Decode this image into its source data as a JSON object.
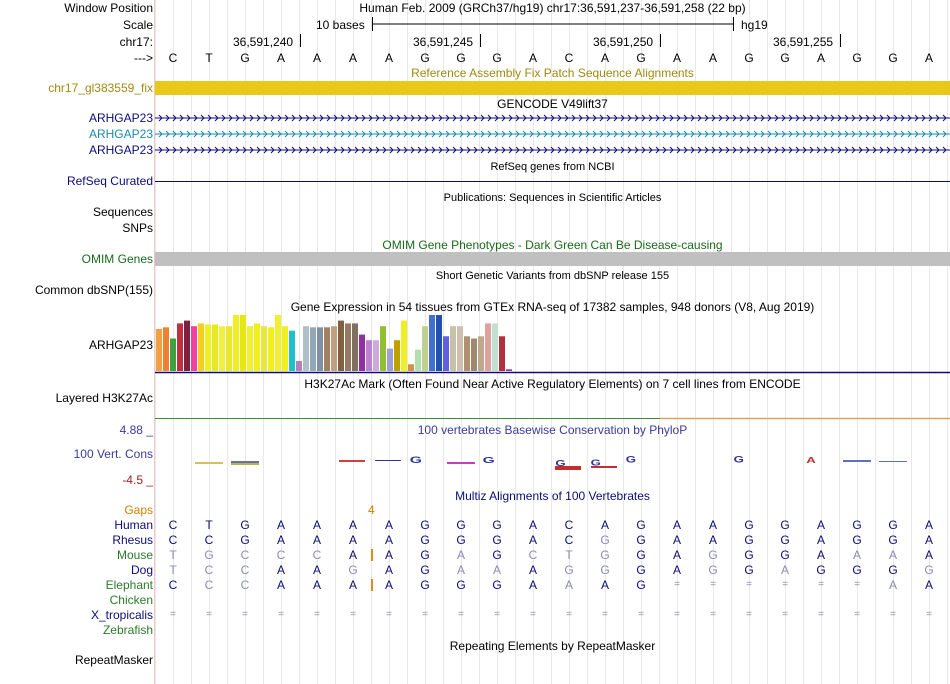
{
  "header": {
    "window_position_label": "Window Position",
    "scale_label": "Scale",
    "chrom_label": "chr17:",
    "arrow_label": "--->",
    "assembly_title": "Human Feb. 2009 (GRCh37/hg19)   chr17:36,591,237-36,591,258 (22 bp)",
    "scale_text": "10 bases",
    "scale_db": "hg19",
    "ticks": [
      "36,591,240",
      "36,591,245",
      "36,591,250",
      "36,591,255"
    ]
  },
  "sequence": [
    "C",
    "T",
    "G",
    "A",
    "A",
    "A",
    "A",
    "G",
    "G",
    "G",
    "A",
    "C",
    "A",
    "G",
    "A",
    "A",
    "G",
    "G",
    "A",
    "G",
    "G",
    "A"
  ],
  "tracks": {
    "fix_patch": {
      "title": "Reference Assembly Fix Patch Sequence Alignments",
      "label": "chr17_gl383559_fix",
      "color": "#e8c818",
      "label_color": "#a08a10"
    },
    "gencode": {
      "title": "GENCODE V49lift37",
      "labels": [
        "ARHGAP23",
        "ARHGAP23",
        "ARHGAP23"
      ],
      "colors": [
        "#0c0c78",
        "#1a8ab0",
        "#0c0c78"
      ]
    },
    "refseq": {
      "title": "RefSeq genes from NCBI",
      "label": "RefSeq Curated"
    },
    "publications": {
      "title": "Publications: Sequences in Scientific Articles",
      "labels": [
        "Sequences",
        "SNPs"
      ]
    },
    "omim": {
      "title": "OMIM Gene Phenotypes - Dark Green Can Be Disease-causing",
      "label": "OMIM Genes",
      "color": "#c0c0c0"
    },
    "dbsnp": {
      "title": "Short Genetic Variants from dbSNP release 155",
      "label": "Common dbSNP(155)"
    },
    "gtex": {
      "title": "Gene Expression in 54 tissues from GTEx RNA-seq of 17382 samples, 948 donors (V8, Aug 2019)",
      "label": "ARHGAP23",
      "bars": [
        {
          "v": 0.75,
          "c": "#f0a040"
        },
        {
          "v": 0.78,
          "c": "#f08030"
        },
        {
          "v": 0.58,
          "c": "#40a040"
        },
        {
          "v": 0.85,
          "c": "#c03040"
        },
        {
          "v": 0.9,
          "c": "#802040"
        },
        {
          "v": 0.8,
          "c": "#f040a0"
        },
        {
          "v": 0.85,
          "c": "#f0d020"
        },
        {
          "v": 0.83,
          "c": "#f0f020"
        },
        {
          "v": 0.83,
          "c": "#e8e820"
        },
        {
          "v": 0.8,
          "c": "#f0f040"
        },
        {
          "v": 0.8,
          "c": "#e8e830"
        },
        {
          "v": 1.0,
          "c": "#f0f020"
        },
        {
          "v": 1.0,
          "c": "#e8e810"
        },
        {
          "v": 0.8,
          "c": "#f0f030"
        },
        {
          "v": 0.85,
          "c": "#f0f020"
        },
        {
          "v": 0.8,
          "c": "#e8e840"
        },
        {
          "v": 0.78,
          "c": "#f0f020"
        },
        {
          "v": 1.0,
          "c": "#f0f030"
        },
        {
          "v": 0.8,
          "c": "#f0f020"
        },
        {
          "v": 0.72,
          "c": "#20c0c8"
        },
        {
          "v": 0.18,
          "c": "#b080c0"
        },
        {
          "v": 0.8,
          "c": "#b0c0c8"
        },
        {
          "v": 0.78,
          "c": "#90a8b8"
        },
        {
          "v": 0.78,
          "c": "#8090a0"
        },
        {
          "v": 0.78,
          "c": "#a08060"
        },
        {
          "v": 0.8,
          "c": "#c0a080"
        },
        {
          "v": 0.9,
          "c": "#806040"
        },
        {
          "v": 0.85,
          "c": "#987860"
        },
        {
          "v": 0.85,
          "c": "#807060"
        },
        {
          "v": 0.65,
          "c": "#9030a0"
        },
        {
          "v": 0.55,
          "c": "#c080d0"
        },
        {
          "v": 0.55,
          "c": "#d0a8e0"
        },
        {
          "v": 0.8,
          "c": "#90c030"
        },
        {
          "v": 0.4,
          "c": "#a0a0d0"
        },
        {
          "v": 0.55,
          "c": "#c0a000"
        },
        {
          "v": 0.9,
          "c": "#f0f020"
        },
        {
          "v": 0.12,
          "c": "#d09050"
        },
        {
          "v": 0.38,
          "c": "#b0e0b0"
        },
        {
          "v": 0.8,
          "c": "#c0d090"
        },
        {
          "v": 1.0,
          "c": "#4070d0"
        },
        {
          "v": 1.0,
          "c": "#2050b0"
        },
        {
          "v": 0.62,
          "c": "#6060e0"
        },
        {
          "v": 0.8,
          "c": "#c8c0a8"
        },
        {
          "v": 0.8,
          "c": "#d0c0b0"
        },
        {
          "v": 0.62,
          "c": "#b09070"
        },
        {
          "v": 0.58,
          "c": "#a08870"
        },
        {
          "v": 0.62,
          "c": "#c0a890"
        },
        {
          "v": 0.85,
          "c": "#e0a0a0"
        },
        {
          "v": 0.85,
          "c": "#c0e0d0"
        },
        {
          "v": 0.62,
          "c": "#b03040"
        },
        {
          "v": 0.03,
          "c": "#a030a0"
        }
      ]
    },
    "h3k27ac": {
      "title": "H3K27Ac Mark (Often Found Near Active Regulatory Elements) on 7 cell lines from ENCODE",
      "label": "Layered H3K27Ac"
    },
    "phylop": {
      "title": "100 vertebrates Basewise Conservation by PhyloP",
      "label": "100 Vert. Cons",
      "max": "4.88 _",
      "min": "-4.5 _"
    },
    "multiz": {
      "title": "Multiz Alignments of 100 Vertebrates",
      "gaps_label": "Gaps",
      "gap_count": "4",
      "species": [
        {
          "name": "Human",
          "color": "#0c0c78",
          "seq": [
            "C",
            "T",
            "G",
            "A",
            "A",
            "A",
            "A",
            "G",
            "G",
            "G",
            "A",
            "C",
            "A",
            "G",
            "A",
            "A",
            "G",
            "G",
            "A",
            "G",
            "G",
            "A"
          ],
          "light": []
        },
        {
          "name": "Rhesus",
          "color": "#0c0c78",
          "seq": [
            "C",
            "C",
            "G",
            "A",
            "A",
            "A",
            "A",
            "G",
            "G",
            "G",
            "A",
            "C",
            "G",
            "G",
            "A",
            "A",
            "G",
            "G",
            "A",
            "G",
            "G",
            "A"
          ],
          "light": [
            12
          ]
        },
        {
          "name": "Mouse",
          "color": "#2a7a2a",
          "seq": [
            "T",
            "G",
            "C",
            "C",
            "C",
            "A",
            "A",
            "G",
            "A",
            "G",
            "C",
            "T",
            "G",
            "G",
            "A",
            "G",
            "G",
            "G",
            "A",
            "A",
            "A",
            "A"
          ],
          "light": [
            0,
            1,
            2,
            3,
            4,
            8,
            10,
            11,
            12,
            15,
            19,
            20
          ]
        },
        {
          "name": "Dog",
          "color": "#0c0c78",
          "seq": [
            "T",
            "C",
            "C",
            "A",
            "A",
            "G",
            "A",
            "G",
            "A",
            "A",
            "A",
            "G",
            "G",
            "G",
            "A",
            "G",
            "G",
            "A",
            "G",
            "G",
            "G",
            "G"
          ],
          "light": [
            0,
            1,
            2,
            5,
            8,
            9,
            11,
            12,
            15,
            17,
            21
          ]
        },
        {
          "name": "Elephant",
          "color": "#2a7a2a",
          "seq": [
            "C",
            "C",
            "C",
            "A",
            "A",
            "A",
            "A",
            "G",
            "G",
            "G",
            "A",
            "A",
            "A",
            "G",
            "=",
            "=",
            "=",
            "=",
            "=",
            "=",
            "A",
            "A"
          ],
          "light": [
            1,
            2,
            11,
            14,
            15,
            16,
            17,
            18,
            19,
            20
          ]
        },
        {
          "name": "Chicken",
          "color": "#2a7a2a",
          "seq": [],
          "light": []
        },
        {
          "name": "X_tropicalis",
          "color": "#0c0c78",
          "seq": [
            "=",
            "=",
            "=",
            "=",
            "=",
            "=",
            "=",
            "=",
            "=",
            "=",
            "=",
            "=",
            "=",
            "=",
            "=",
            "=",
            "=",
            "=",
            "=",
            "=",
            "=",
            "="
          ],
          "light": [
            0,
            1,
            2,
            3,
            4,
            5,
            6,
            7,
            8,
            9,
            10,
            11,
            12,
            13,
            14,
            15,
            16,
            17,
            18,
            19,
            20,
            21
          ]
        },
        {
          "name": "Zebrafish",
          "color": "#2a7a2a",
          "seq": [],
          "light": []
        }
      ]
    },
    "repeatmasker": {
      "title": "Repeating Elements by RepeatMasker",
      "label": "RepeatMasker"
    }
  }
}
